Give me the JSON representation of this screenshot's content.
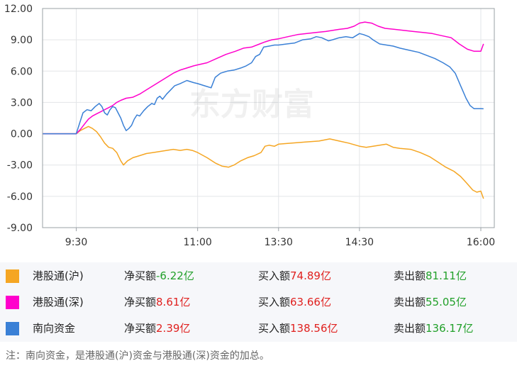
{
  "watermark": "东方财富",
  "chart_data": {
    "type": "line",
    "y_ticks": [
      "12.00",
      "9.00",
      "6.00",
      "3.00",
      "0.00",
      "-3.00",
      "-6.00",
      "-9.00"
    ],
    "ylim": [
      -9,
      12
    ],
    "x_ticks": [
      {
        "label": "9:30",
        "t": 0
      },
      {
        "label": "11:00",
        "t": 90
      },
      {
        "label": "13:30",
        "t": 150
      },
      {
        "label": "14:30",
        "t": 210
      },
      {
        "label": "16:00",
        "t": 300
      }
    ],
    "x_domain": [
      -25,
      310
    ],
    "grid": true,
    "series": [
      {
        "name": "港股通(沪)",
        "color": "#f5a623",
        "points": [
          [
            -25,
            0
          ],
          [
            0,
            0
          ],
          [
            3,
            0.3
          ],
          [
            6,
            0.5
          ],
          [
            9,
            0.7
          ],
          [
            12,
            0.5
          ],
          [
            15,
            0.2
          ],
          [
            18,
            -0.3
          ],
          [
            21,
            -0.9
          ],
          [
            24,
            -1.3
          ],
          [
            27,
            -1.4
          ],
          [
            30,
            -1.8
          ],
          [
            33,
            -2.6
          ],
          [
            35,
            -3.0
          ],
          [
            38,
            -2.6
          ],
          [
            42,
            -2.3
          ],
          [
            47,
            -2.1
          ],
          [
            52,
            -1.9
          ],
          [
            57,
            -1.8
          ],
          [
            62,
            -1.7
          ],
          [
            67,
            -1.6
          ],
          [
            72,
            -1.5
          ],
          [
            77,
            -1.6
          ],
          [
            82,
            -1.5
          ],
          [
            86,
            -1.6
          ],
          [
            90,
            -1.8
          ],
          [
            97,
            -2.3
          ],
          [
            103,
            -2.8
          ],
          [
            108,
            -3.1
          ],
          [
            113,
            -3.2
          ],
          [
            117,
            -3.0
          ],
          [
            122,
            -2.6
          ],
          [
            127,
            -2.3
          ],
          [
            132,
            -2.1
          ],
          [
            137,
            -1.8
          ],
          [
            140,
            -1.2
          ],
          [
            143,
            -1.1
          ],
          [
            147,
            -1.2
          ],
          [
            150,
            -1.0
          ],
          [
            160,
            -0.9
          ],
          [
            170,
            -0.8
          ],
          [
            180,
            -0.7
          ],
          [
            188,
            -0.5
          ],
          [
            195,
            -0.7
          ],
          [
            202,
            -0.9
          ],
          [
            210,
            -1.2
          ],
          [
            215,
            -1.3
          ],
          [
            220,
            -1.2
          ],
          [
            225,
            -1.1
          ],
          [
            230,
            -1.0
          ],
          [
            235,
            -1.3
          ],
          [
            240,
            -1.4
          ],
          [
            248,
            -1.5
          ],
          [
            255,
            -1.8
          ],
          [
            262,
            -2.2
          ],
          [
            268,
            -2.7
          ],
          [
            274,
            -3.2
          ],
          [
            280,
            -3.6
          ],
          [
            285,
            -4.1
          ],
          [
            290,
            -4.8
          ],
          [
            294,
            -5.4
          ],
          [
            297,
            -5.6
          ],
          [
            300,
            -5.5
          ],
          [
            302,
            -6.22
          ]
        ]
      },
      {
        "name": "港股通(深)",
        "color": "#ff00cc",
        "points": [
          [
            -25,
            0
          ],
          [
            0,
            0
          ],
          [
            3,
            0.4
          ],
          [
            6,
            0.9
          ],
          [
            9,
            1.4
          ],
          [
            12,
            1.7
          ],
          [
            15,
            1.9
          ],
          [
            18,
            2.1
          ],
          [
            21,
            2.3
          ],
          [
            24,
            2.5
          ],
          [
            27,
            2.7
          ],
          [
            30,
            3.0
          ],
          [
            33,
            3.2
          ],
          [
            37,
            3.4
          ],
          [
            42,
            3.5
          ],
          [
            47,
            3.8
          ],
          [
            52,
            4.2
          ],
          [
            57,
            4.6
          ],
          [
            62,
            5.0
          ],
          [
            67,
            5.4
          ],
          [
            72,
            5.8
          ],
          [
            77,
            6.1
          ],
          [
            82,
            6.3
          ],
          [
            87,
            6.5
          ],
          [
            90,
            6.6
          ],
          [
            97,
            6.8
          ],
          [
            104,
            7.2
          ],
          [
            111,
            7.6
          ],
          [
            118,
            7.9
          ],
          [
            124,
            8.2
          ],
          [
            130,
            8.3
          ],
          [
            136,
            8.6
          ],
          [
            140,
            8.8
          ],
          [
            145,
            9.0
          ],
          [
            150,
            9.1
          ],
          [
            157,
            9.3
          ],
          [
            164,
            9.5
          ],
          [
            171,
            9.6
          ],
          [
            178,
            9.7
          ],
          [
            185,
            9.8
          ],
          [
            190,
            9.9
          ],
          [
            195,
            10.0
          ],
          [
            201,
            10.1
          ],
          [
            206,
            10.3
          ],
          [
            210,
            10.6
          ],
          [
            214,
            10.7
          ],
          [
            219,
            10.6
          ],
          [
            224,
            10.3
          ],
          [
            229,
            10.1
          ],
          [
            236,
            10.0
          ],
          [
            243,
            9.9
          ],
          [
            250,
            9.8
          ],
          [
            257,
            9.7
          ],
          [
            264,
            9.6
          ],
          [
            271,
            9.4
          ],
          [
            278,
            9.2
          ],
          [
            284,
            8.6
          ],
          [
            290,
            8.1
          ],
          [
            295,
            7.9
          ],
          [
            300,
            7.9
          ],
          [
            302,
            8.61
          ]
        ]
      },
      {
        "name": "南向资金",
        "color": "#3a80d6",
        "points": [
          [
            -25,
            0
          ],
          [
            0,
            0
          ],
          [
            3,
            1.2
          ],
          [
            5,
            2.0
          ],
          [
            8,
            2.3
          ],
          [
            11,
            2.2
          ],
          [
            14,
            2.6
          ],
          [
            17,
            2.9
          ],
          [
            19,
            2.6
          ],
          [
            21,
            2.0
          ],
          [
            23,
            1.8
          ],
          [
            25,
            2.3
          ],
          [
            27,
            2.6
          ],
          [
            29,
            2.5
          ],
          [
            31,
            2.0
          ],
          [
            33,
            1.5
          ],
          [
            35,
            0.8
          ],
          [
            37,
            0.3
          ],
          [
            39,
            0.5
          ],
          [
            41,
            0.8
          ],
          [
            43,
            1.4
          ],
          [
            45,
            1.8
          ],
          [
            47,
            1.7
          ],
          [
            50,
            2.2
          ],
          [
            53,
            2.6
          ],
          [
            56,
            2.9
          ],
          [
            58,
            2.8
          ],
          [
            60,
            3.4
          ],
          [
            62,
            3.6
          ],
          [
            64,
            3.3
          ],
          [
            67,
            3.8
          ],
          [
            70,
            4.2
          ],
          [
            73,
            4.6
          ],
          [
            77,
            4.8
          ],
          [
            82,
            5.1
          ],
          [
            87,
            4.9
          ],
          [
            90,
            4.8
          ],
          [
            95,
            4.6
          ],
          [
            100,
            4.4
          ],
          [
            103,
            5.4
          ],
          [
            107,
            5.8
          ],
          [
            112,
            6.0
          ],
          [
            117,
            6.1
          ],
          [
            122,
            6.3
          ],
          [
            126,
            6.5
          ],
          [
            130,
            6.8
          ],
          [
            133,
            7.4
          ],
          [
            136,
            7.6
          ],
          [
            139,
            8.3
          ],
          [
            143,
            8.4
          ],
          [
            147,
            8.5
          ],
          [
            150,
            8.5
          ],
          [
            156,
            8.6
          ],
          [
            162,
            8.7
          ],
          [
            168,
            9.0
          ],
          [
            174,
            9.1
          ],
          [
            178,
            9.3
          ],
          [
            182,
            9.2
          ],
          [
            187,
            8.9
          ],
          [
            190,
            9.0
          ],
          [
            195,
            9.2
          ],
          [
            200,
            9.3
          ],
          [
            205,
            9.2
          ],
          [
            210,
            9.6
          ],
          [
            213,
            9.5
          ],
          [
            217,
            9.3
          ],
          [
            220,
            9.0
          ],
          [
            225,
            8.6
          ],
          [
            230,
            8.5
          ],
          [
            235,
            8.4
          ],
          [
            240,
            8.2
          ],
          [
            247,
            8.0
          ],
          [
            254,
            7.8
          ],
          [
            260,
            7.5
          ],
          [
            266,
            7.2
          ],
          [
            272,
            6.8
          ],
          [
            277,
            6.4
          ],
          [
            281,
            5.8
          ],
          [
            285,
            4.6
          ],
          [
            289,
            3.4
          ],
          [
            292,
            2.7
          ],
          [
            295,
            2.4
          ],
          [
            300,
            2.4
          ],
          [
            302,
            2.39
          ]
        ]
      }
    ]
  },
  "legend": [
    {
      "name": "港股通(沪)",
      "color": "#f5a623",
      "net_label": "净买额",
      "net": "-6.22亿",
      "net_dir": "down",
      "buy_label": "买入额",
      "buy": "74.89亿",
      "sell_label": "卖出额",
      "sell": "81.11亿"
    },
    {
      "name": "港股通(深)",
      "color": "#ff00cc",
      "net_label": "净买额",
      "net": "8.61亿",
      "net_dir": "up",
      "buy_label": "买入额",
      "buy": "63.66亿",
      "sell_label": "卖出额",
      "sell": "55.05亿"
    },
    {
      "name": "南向资金",
      "color": "#3a80d6",
      "net_label": "净买额",
      "net": "2.39亿",
      "net_dir": "up",
      "buy_label": "买入额",
      "buy": "138.56亿",
      "sell_label": "卖出额",
      "sell": "136.17亿"
    }
  ],
  "note": "注：南向资金，是港股通(沪)资金与港股通(深)资金的加总。"
}
